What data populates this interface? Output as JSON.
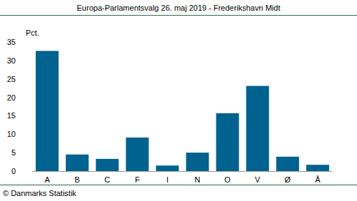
{
  "chart_data": {
    "type": "bar",
    "title": "Europa-Parlamentsvalg 26. maj 2019 - Frederikshavn Midt",
    "ylabel": "Pct.",
    "source": "© Danmarks Statistik",
    "categories": [
      "A",
      "B",
      "C",
      "F",
      "I",
      "N",
      "O",
      "V",
      "Ø",
      "Å"
    ],
    "values": [
      32.6,
      4.5,
      3.3,
      9.1,
      1.5,
      5.0,
      15.7,
      23.1,
      3.9,
      1.7
    ],
    "color": "#00628f",
    "ylim": [
      0,
      35
    ],
    "yticks": [
      0,
      5,
      10,
      15,
      20,
      25,
      30,
      35
    ],
    "grid": false
  }
}
